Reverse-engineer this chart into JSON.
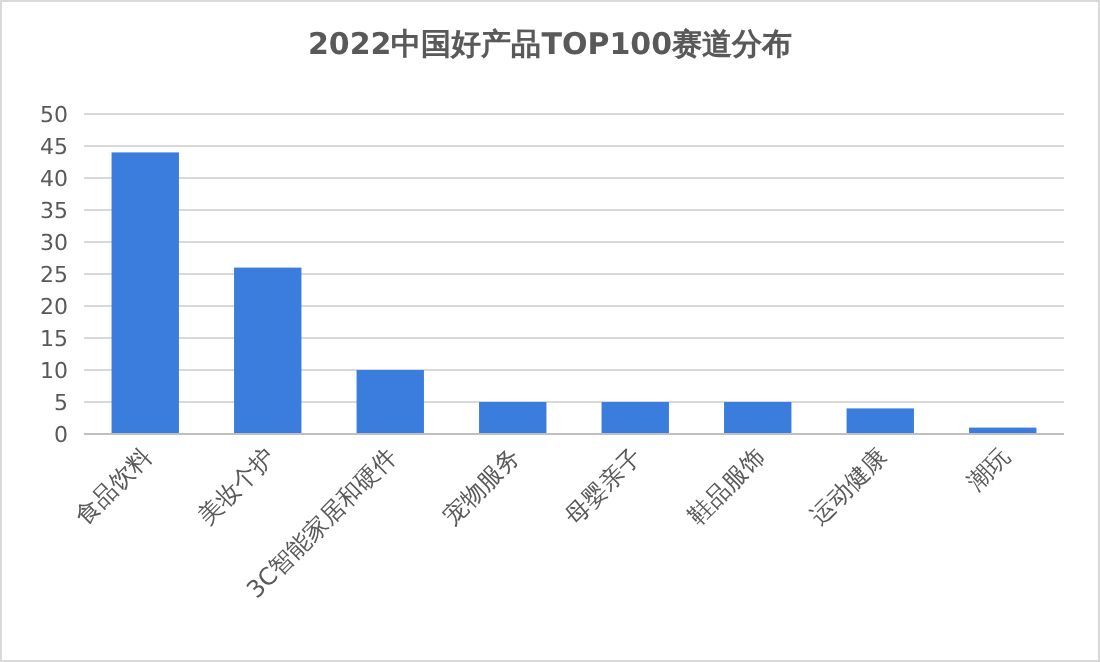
{
  "chart_data": {
    "type": "bar",
    "title": "2022中国好产品TOP100赛道分布",
    "categories": [
      "食品饮料",
      "美妆个护",
      "3C智能家居和硬件",
      "宠物服务",
      "母婴亲子",
      "鞋品服饰",
      "运动健康",
      "潮玩"
    ],
    "values": [
      44,
      26,
      10,
      5,
      5,
      5,
      4,
      1
    ],
    "color": "#3a7ddc",
    "ylim": [
      0,
      50
    ],
    "yticks": [
      0,
      5,
      10,
      15,
      20,
      25,
      30,
      35,
      40,
      45,
      50
    ],
    "grid": "y"
  }
}
